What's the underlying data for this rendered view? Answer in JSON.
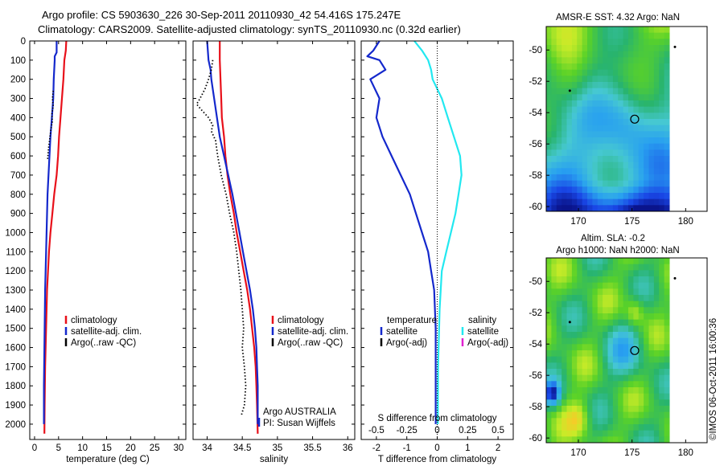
{
  "figure": {
    "title_line1": "Argo profile: CS 5903630_226 30-Sep-2011 20110930_42 54.416S 175.247E",
    "title_line2": "Climatology: CARS2009. Satellite-adjusted climatology: synTS_20110930.nc (0.32d earlier)",
    "watermark": "©IMOS 06-Oct-2011 16:00:36"
  },
  "colors": {
    "climatology": "#e8101a",
    "satellite": "#1428cc",
    "argo": "#000000",
    "salinity_satellite": "#22e8f0",
    "salinity_argo": "#e020d0"
  },
  "chart_data": [
    {
      "type": "line",
      "name": "temperature-panel",
      "xlabel": "temperature (deg C)",
      "ylabel": "",
      "xlim": [
        -1,
        31.5
      ],
      "ylim": [
        2080,
        0
      ],
      "xticks": [
        0,
        5,
        10,
        15,
        20,
        25,
        30
      ],
      "yticks": [
        0,
        100,
        200,
        300,
        400,
        500,
        600,
        700,
        800,
        900,
        1000,
        1100,
        1200,
        1300,
        1400,
        1500,
        1600,
        1700,
        1800,
        1900,
        2000
      ],
      "legend": [
        "climatology",
        "satellite-adj. clim.",
        "Argo(..raw -QC)"
      ],
      "series": [
        {
          "name": "climatology",
          "x": [
            6.6,
            6.5,
            6.2,
            6.0,
            5.7,
            5.4,
            5.1,
            4.9,
            4.6,
            4.1,
            3.7,
            3.3,
            3.0,
            2.8,
            2.6,
            2.5,
            2.4,
            2.3,
            2.2,
            2.15,
            2.1,
            2.05
          ],
          "y": [
            0,
            50,
            100,
            200,
            300,
            400,
            500,
            600,
            700,
            800,
            900,
            1000,
            1100,
            1200,
            1300,
            1400,
            1500,
            1600,
            1700,
            1800,
            1900,
            2050
          ]
        },
        {
          "name": "satellite-adj. clim.",
          "x": [
            4.6,
            4.6,
            4.2,
            4.2,
            4.0,
            3.9,
            3.6,
            3.3,
            3.1,
            2.9,
            2.7,
            2.6,
            2.5,
            2.4,
            2.3,
            2.2,
            2.15,
            2.1,
            2.05,
            2.0,
            1.95,
            1.95
          ],
          "y": [
            0,
            60,
            80,
            100,
            200,
            300,
            400,
            500,
            600,
            700,
            800,
            900,
            1000,
            1100,
            1200,
            1300,
            1400,
            1500,
            1600,
            1700,
            1800,
            2000
          ]
        },
        {
          "name": "Argo(..raw -QC)",
          "x": [
            3.9,
            3.7,
            3.9,
            3.6,
            3.7,
            3.4,
            3.2,
            2.9,
            2.7
          ],
          "y": [
            260,
            300,
            340,
            380,
            420,
            460,
            500,
            560,
            620
          ]
        }
      ]
    },
    {
      "type": "line",
      "name": "salinity-panel",
      "xlabel": "salinity",
      "ylabel": "",
      "xlim": [
        33.8,
        36.1
      ],
      "ylim": [
        2080,
        0
      ],
      "xticks": [
        34,
        34.5,
        35,
        35.5,
        36
      ],
      "legend": [
        "climatology",
        "satellite-adj. clim.",
        "Argo(..raw -QC)"
      ],
      "annotations": [
        "Argo AUSTRALIA",
        "PI: Susan Wijffels"
      ],
      "series": [
        {
          "name": "climatology",
          "x": [
            34.18,
            34.18,
            34.19,
            34.2,
            34.21,
            34.24,
            34.26,
            34.29,
            34.33,
            34.38,
            34.42,
            34.47,
            34.52,
            34.57,
            34.61,
            34.64,
            34.67,
            34.69,
            34.7,
            34.71,
            34.72
          ],
          "y": [
            0,
            100,
            200,
            300,
            400,
            500,
            600,
            700,
            800,
            900,
            1000,
            1100,
            1200,
            1300,
            1400,
            1500,
            1600,
            1700,
            1800,
            1900,
            2050
          ]
        },
        {
          "name": "satellite-adj. clim.",
          "x": [
            34.0,
            34.02,
            34.05,
            34.06,
            34.1,
            34.14,
            34.18,
            34.24,
            34.3,
            34.36,
            34.41,
            34.46,
            34.51,
            34.56,
            34.61,
            34.65,
            34.68,
            34.7,
            34.71,
            34.72,
            34.72
          ],
          "y": [
            0,
            100,
            150,
            200,
            300,
            400,
            500,
            600,
            700,
            800,
            900,
            1000,
            1100,
            1200,
            1300,
            1400,
            1500,
            1600,
            1700,
            1800,
            2000
          ]
        },
        {
          "name": "Argo(..raw -QC)",
          "x": [
            34.08,
            34.06,
            34.02,
            33.97,
            33.9,
            33.85,
            33.92,
            34.02,
            34.08,
            34.06,
            34.12,
            34.15,
            34.2,
            34.27,
            34.32,
            34.38,
            34.42,
            34.45,
            34.48,
            34.5,
            34.52,
            34.5,
            34.53,
            34.55,
            34.53,
            34.49
          ],
          "y": [
            100,
            150,
            200,
            250,
            300,
            330,
            360,
            400,
            440,
            470,
            520,
            600,
            700,
            800,
            900,
            1000,
            1100,
            1200,
            1300,
            1400,
            1500,
            1600,
            1700,
            1800,
            1900,
            1950
          ]
        }
      ]
    },
    {
      "type": "line",
      "name": "difference-panel",
      "xlabel": "T difference from climatology",
      "xlabel_top": "S difference from climatology",
      "xlim": [
        -2.5,
        2.5
      ],
      "ylim": [
        2080,
        0
      ],
      "xticks": [
        -2,
        -1,
        0,
        1,
        2
      ],
      "xticks_salinity": [
        -0.5,
        -0.25,
        0,
        0.25,
        0.5
      ],
      "legend_temperature": {
        "heading": "temperature",
        "items": [
          "satellite",
          "Argo(-adj)"
        ]
      },
      "legend_salinity": {
        "heading": "salinity",
        "items": [
          "satellite",
          "Argo(-adj)"
        ]
      },
      "series": [
        {
          "name": "temperature satellite",
          "x": [
            -1.9,
            -2.1,
            -2.3,
            -1.9,
            -1.7,
            -2.2,
            -1.9,
            -2.0,
            -1.8,
            -1.5,
            -1.2,
            -0.9,
            -0.7,
            -0.5,
            -0.3,
            -0.2,
            -0.1,
            -0.05,
            -0.05,
            -0.05,
            -0.05
          ],
          "y": [
            0,
            50,
            80,
            100,
            150,
            200,
            300,
            400,
            500,
            600,
            700,
            800,
            900,
            1000,
            1100,
            1200,
            1300,
            1500,
            1700,
            1900,
            2000
          ]
        },
        {
          "name": "salinity satellite",
          "x": [
            -0.75,
            -0.5,
            -0.3,
            -0.2,
            -0.15,
            0.15,
            0.35,
            0.55,
            0.75,
            0.8,
            0.7,
            0.6,
            0.45,
            0.3,
            0.15,
            0.08,
            0.03,
            0.02
          ],
          "y": [
            0,
            50,
            100,
            150,
            200,
            300,
            400,
            500,
            600,
            700,
            800,
            900,
            1000,
            1100,
            1200,
            1400,
            1700,
            2000
          ]
        }
      ]
    },
    {
      "type": "heatmap",
      "name": "sst-map",
      "title": "AMSR-E SST: 4.32 Argo: NaN",
      "xlim": [
        167,
        182
      ],
      "ylim": [
        -60.3,
        -48.5
      ],
      "xticks": [
        170,
        175,
        180
      ],
      "yticks": [
        -50,
        -52,
        -54,
        -56,
        -58,
        -60
      ],
      "float_marker": {
        "lon": 175.247,
        "lat": -54.416
      }
    },
    {
      "type": "heatmap",
      "name": "sla-map",
      "title_line1": "Altim. SLA: -0.2",
      "title_line2": "Argo h1000: NaN h2000: NaN",
      "xlim": [
        167,
        182
      ],
      "ylim": [
        -60.3,
        -48.5
      ],
      "xticks": [
        170,
        175,
        180
      ],
      "yticks": [
        -50,
        -52,
        -54,
        -56,
        -58,
        -60
      ],
      "float_marker": {
        "lon": 175.247,
        "lat": -54.416
      }
    }
  ]
}
